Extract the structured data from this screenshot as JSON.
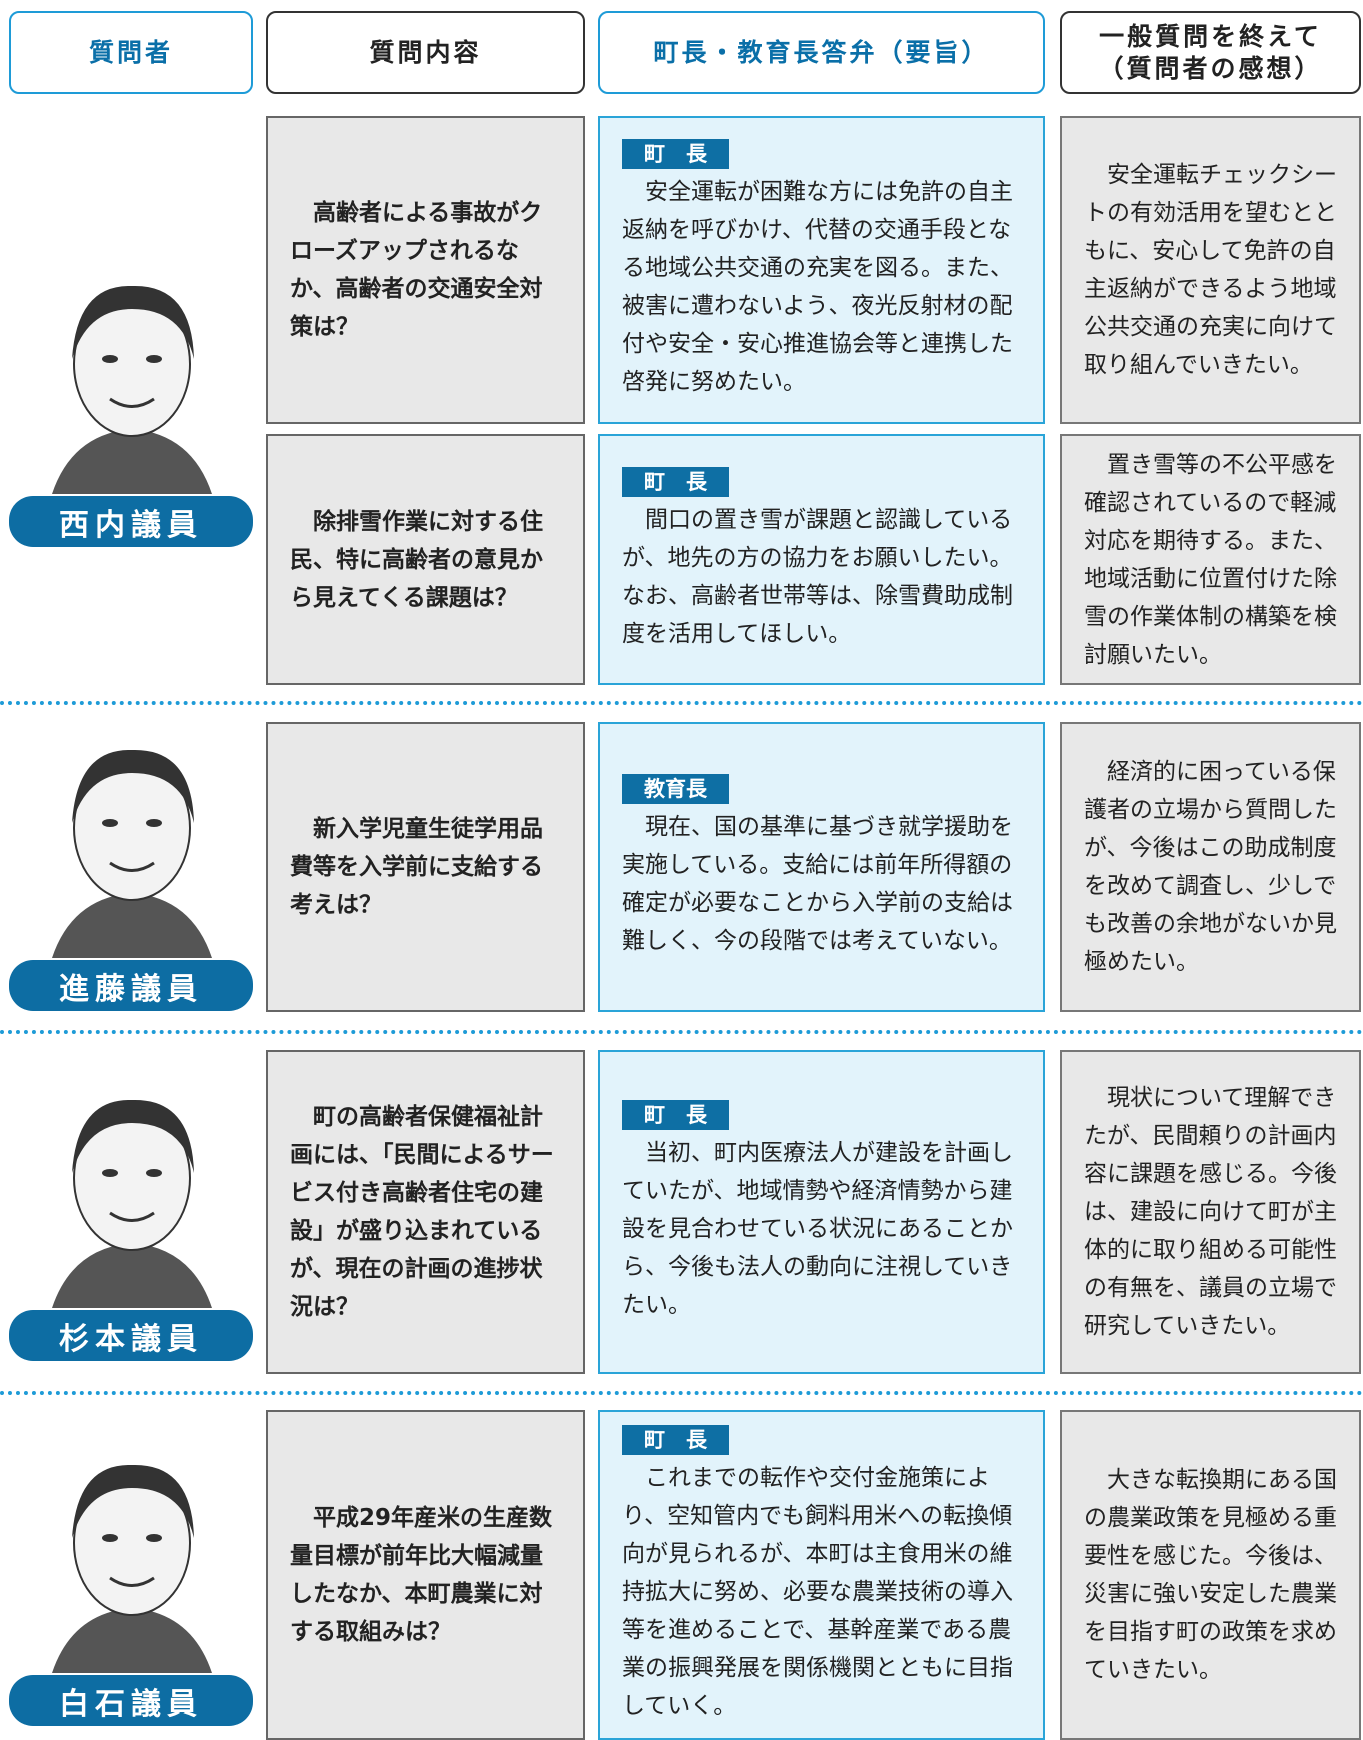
{
  "header": {
    "columns": [
      "質問者",
      "質問内容",
      "町長・教育長答弁（要旨）",
      [
        "一般質問を終えて",
        "（質問者の感想）"
      ]
    ]
  },
  "speakers": [
    {
      "name": "西内議員",
      "items": [
        {
          "question": "高齢者による事故がクローズアップされるなか、高齢者の交通安全対策は？",
          "role": "町　長",
          "answer": "安全運転が困難な方には免許の自主返納を呼びかけ、代替の交通手段となる地域公共交通の充実を図る。また、被害に遭わないよう、夜光反射材の配付や安全・安心推進協会等と連携した啓発に努めたい。",
          "impression": "安全運転チェックシートの有効活用を望むとともに、安心して免許の自主返納ができるよう地域公共交通の充実に向けて取り組んでいきたい。"
        },
        {
          "question": "除排雪作業に対する住民、特に高齢者の意見から見えてくる課題は？",
          "role": "町　長",
          "answer": "間口の置き雪が課題と認識しているが、地先の方の協力をお願いしたい。なお、高齢者世帯等は、除雪費助成制度を活用してほしい。",
          "impression": "置き雪等の不公平感を確認されているので軽減対応を期待する。また、地域活動に位置付けた除雪の作業体制の構築を検討願いたい。"
        }
      ]
    },
    {
      "name": "進藤議員",
      "items": [
        {
          "question": "新入学児童生徒学用品費等を入学前に支給する考えは？",
          "role": "教育長",
          "answer": "現在、国の基準に基づき就学援助を実施している。支給には前年所得額の確定が必要なことから入学前の支給は難しく、今の段階では考えていない。",
          "impression": "経済的に困っている保護者の立場から質問したが、今後はこの助成制度を改めて調査し、少しでも改善の余地がないか見極めたい。"
        }
      ]
    },
    {
      "name": "杉本議員",
      "items": [
        {
          "question": "町の高齢者保健福祉計画には、「民間によるサービス付き高齢者住宅の建設」が盛り込まれているが、現在の計画の進捗状況は？",
          "role": "町　長",
          "answer": "当初、町内医療法人が建設を計画していたが、地域情勢や経済情勢から建設を見合わせている状況にあることから、今後も法人の動向に注視していきたい。",
          "impression": "現状について理解できたが、民間頼りの計画内容に課題を感じる。今後は、建設に向けて町が主体的に取り組める可能性の有無を、議員の立場で研究していきたい。"
        }
      ]
    },
    {
      "name": "白石議員",
      "items": [
        {
          "question": "平成29年産米の生産数量目標が前年比大幅減量したなか、本町農業に対する取組みは？",
          "role": "町　長",
          "answer": "これまでの転作や交付金施策により、空知管内でも飼料用米への転換傾向が見られるが、本町は主食用米の維持拡大に努め、必要な農業技術の導入等を進めることで、基幹産業である農業の振興発展を関係機関とともに目指していく。",
          "impression": "大きな転換期にある国の農業政策を見極める重要性を感じた。今後は、災害に強い安定した農業を目指す町の政策を求めていきたい。"
        }
      ]
    }
  ]
}
